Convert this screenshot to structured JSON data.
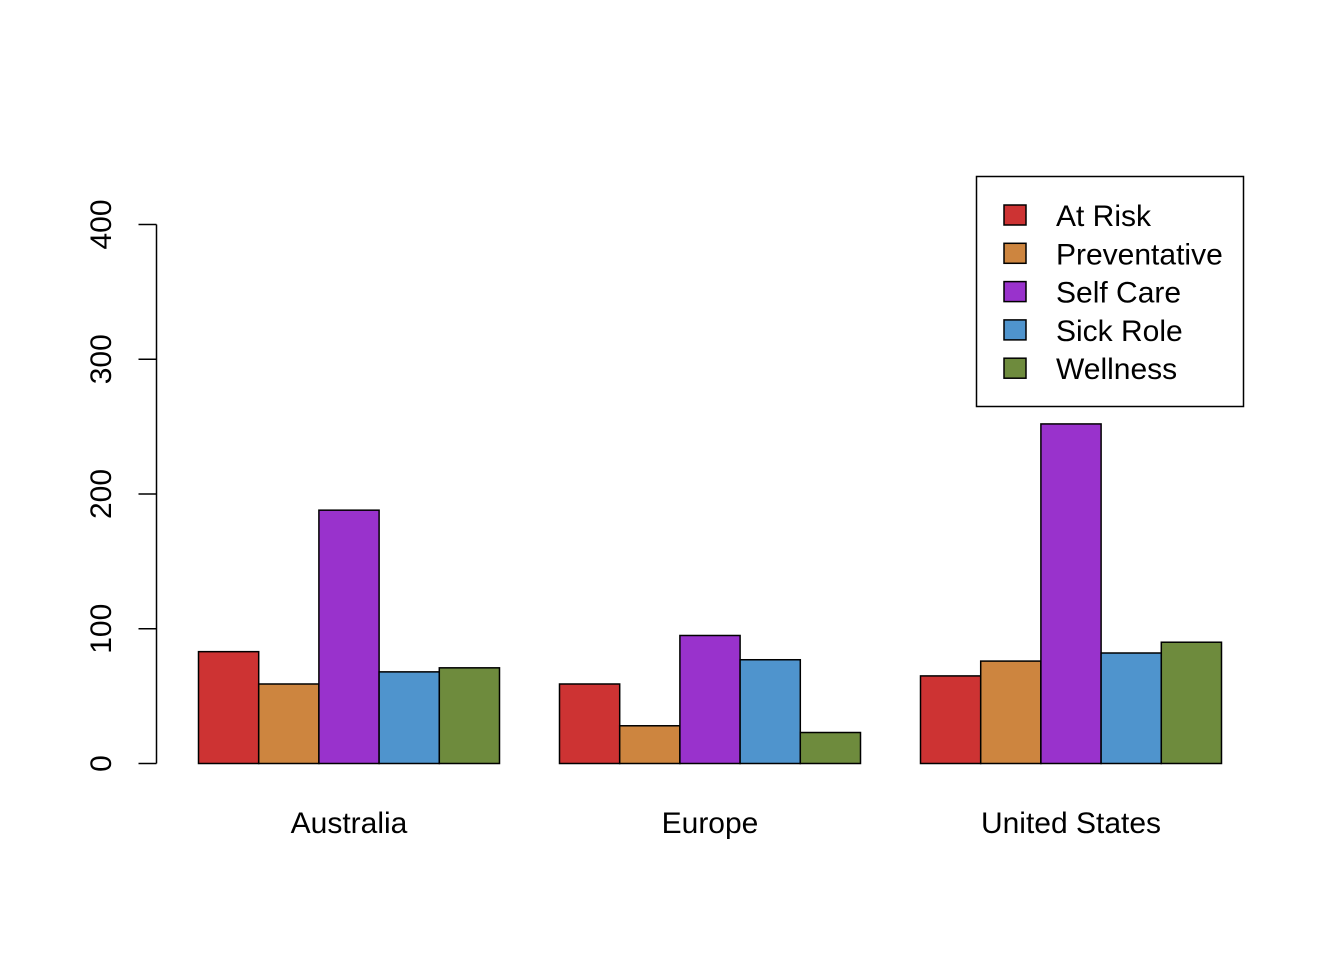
{
  "chart_data": {
    "type": "bar",
    "title": "",
    "xlabel": "",
    "ylabel": "",
    "categories": [
      "Australia",
      "Europe",
      "United States"
    ],
    "series": [
      {
        "name": "At Risk",
        "color": "#CD3333",
        "values": [
          83,
          59,
          65
        ]
      },
      {
        "name": "Preventative",
        "color": "#CD853F",
        "values": [
          59,
          28,
          76
        ]
      },
      {
        "name": "Self Care",
        "color": "#9932CC",
        "values": [
          188,
          95,
          252
        ]
      },
      {
        "name": "Sick Role",
        "color": "#4F94CD",
        "values": [
          68,
          77,
          82
        ]
      },
      {
        "name": "Wellness",
        "color": "#6E8B3D",
        "values": [
          71,
          23,
          90
        ]
      }
    ],
    "ylim": [
      0,
      400
    ],
    "yticks": [
      0,
      100,
      200,
      300,
      400
    ],
    "ytick_labels": [
      "0",
      "100",
      "200",
      "300",
      "400"
    ],
    "grid": false,
    "legend_position": "top-right",
    "orientation": "grouped-vertical"
  }
}
